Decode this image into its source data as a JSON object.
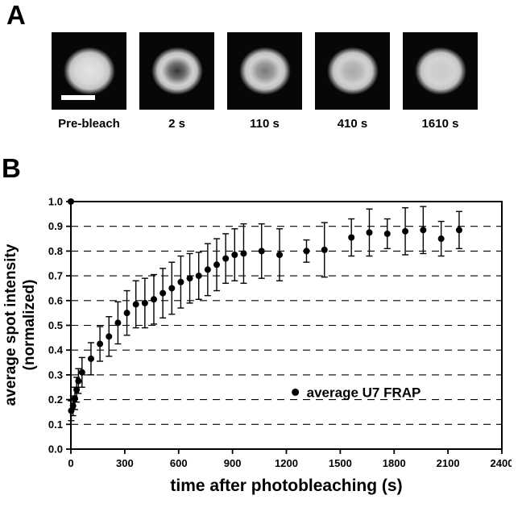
{
  "panel_a": {
    "label": "A",
    "frames": [
      {
        "label": "Pre-bleach",
        "bleach": 0,
        "has_scale_bar": true
      },
      {
        "label": "2 s",
        "bleach": 0.9,
        "has_scale_bar": false
      },
      {
        "label": "110 s",
        "bleach": 0.55,
        "has_scale_bar": false
      },
      {
        "label": "410 s",
        "bleach": 0.3,
        "has_scale_bar": false
      },
      {
        "label": "1610 s",
        "bleach": 0.12,
        "has_scale_bar": false
      }
    ]
  },
  "panel_b": {
    "label": "B"
  },
  "chart_data": {
    "type": "scatter",
    "title": "",
    "xlabel": "time after photobleaching (s)",
    "ylabel_line1": "average spot intensity",
    "ylabel_line2": "(normalized)",
    "xlim": [
      0,
      2400
    ],
    "ylim": [
      0.0,
      1.0
    ],
    "xticks": [
      0,
      300,
      600,
      900,
      1200,
      1500,
      1800,
      2100,
      2400
    ],
    "yticks": [
      0.0,
      0.1,
      0.2,
      0.3,
      0.4,
      0.5,
      0.6,
      0.7,
      0.8,
      0.9,
      1.0
    ],
    "grid": "horizontal-dashed",
    "marker_color": "#000000",
    "legend": {
      "label": "average U7 FRAP",
      "x": 1250,
      "y": 0.23,
      "position": "inside-lower-right"
    },
    "series": [
      {
        "name": "average U7 FRAP",
        "points": [
          [
            0,
            1.0,
            0
          ],
          [
            2,
            0.155,
            0.04
          ],
          [
            12,
            0.175,
            0.04
          ],
          [
            22,
            0.205,
            0.045
          ],
          [
            32,
            0.24,
            0.05
          ],
          [
            42,
            0.275,
            0.05
          ],
          [
            62,
            0.31,
            0.06
          ],
          [
            112,
            0.365,
            0.065
          ],
          [
            162,
            0.425,
            0.07
          ],
          [
            212,
            0.455,
            0.08
          ],
          [
            262,
            0.51,
            0.085
          ],
          [
            312,
            0.55,
            0.09
          ],
          [
            362,
            0.585,
            0.095
          ],
          [
            412,
            0.59,
            0.1
          ],
          [
            462,
            0.605,
            0.1
          ],
          [
            512,
            0.63,
            0.1
          ],
          [
            562,
            0.65,
            0.105
          ],
          [
            612,
            0.675,
            0.105
          ],
          [
            662,
            0.69,
            0.1
          ],
          [
            712,
            0.7,
            0.095
          ],
          [
            762,
            0.725,
            0.105
          ],
          [
            812,
            0.745,
            0.105
          ],
          [
            862,
            0.77,
            0.1
          ],
          [
            912,
            0.785,
            0.105
          ],
          [
            962,
            0.79,
            0.12
          ],
          [
            1062,
            0.8,
            0.11
          ],
          [
            1162,
            0.785,
            0.105
          ],
          [
            1312,
            0.8,
            0.045
          ],
          [
            1412,
            0.805,
            0.11
          ],
          [
            1562,
            0.855,
            0.075
          ],
          [
            1662,
            0.875,
            0.095
          ],
          [
            1762,
            0.87,
            0.06
          ],
          [
            1862,
            0.88,
            0.095
          ],
          [
            1962,
            0.885,
            0.095
          ],
          [
            2062,
            0.85,
            0.07
          ],
          [
            2162,
            0.885,
            0.075
          ]
        ]
      }
    ]
  }
}
